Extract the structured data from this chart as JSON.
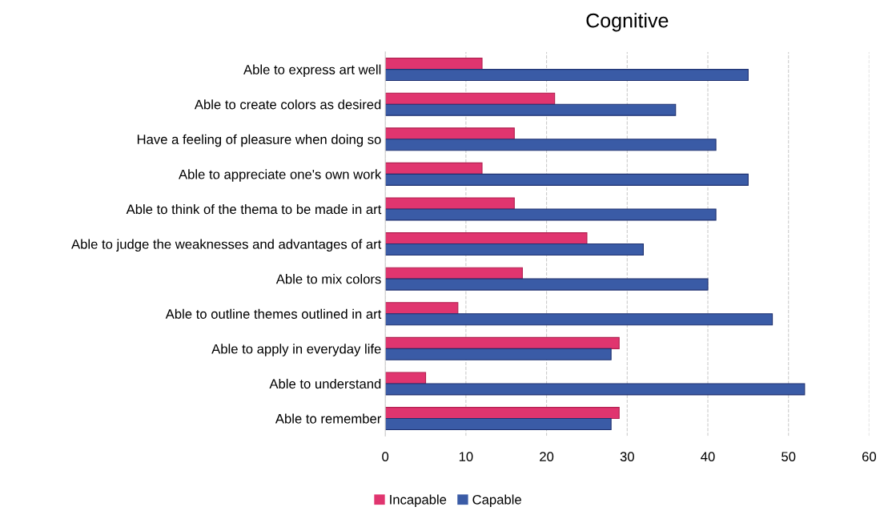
{
  "chart_data": {
    "type": "bar",
    "orientation": "horizontal",
    "title": "Cognitive",
    "categories": [
      "Able to express art well",
      "Able to create colors as desired",
      "Have a feeling of pleasure when doing so",
      "Able to appreciate one's own work",
      "Able to think of the thema to be made in art",
      "Able to judge the weaknesses and advantages of art",
      "Able to mix colors",
      "Able to outline themes outlined in art",
      "Able to apply in everyday life",
      "Able to understand",
      "Able to remember"
    ],
    "series": [
      {
        "name": "Incapable",
        "color": "#e0356f",
        "values": [
          12,
          21,
          16,
          12,
          16,
          25,
          17,
          9,
          29,
          5,
          29
        ]
      },
      {
        "name": "Capable",
        "color": "#3a5ba6",
        "values": [
          45,
          36,
          41,
          45,
          41,
          32,
          40,
          48,
          28,
          52,
          28
        ]
      }
    ],
    "xlim": [
      0,
      60
    ],
    "xticks": [
      0,
      10,
      20,
      30,
      40,
      50,
      60
    ],
    "grid": "x",
    "legend": "bottom"
  }
}
